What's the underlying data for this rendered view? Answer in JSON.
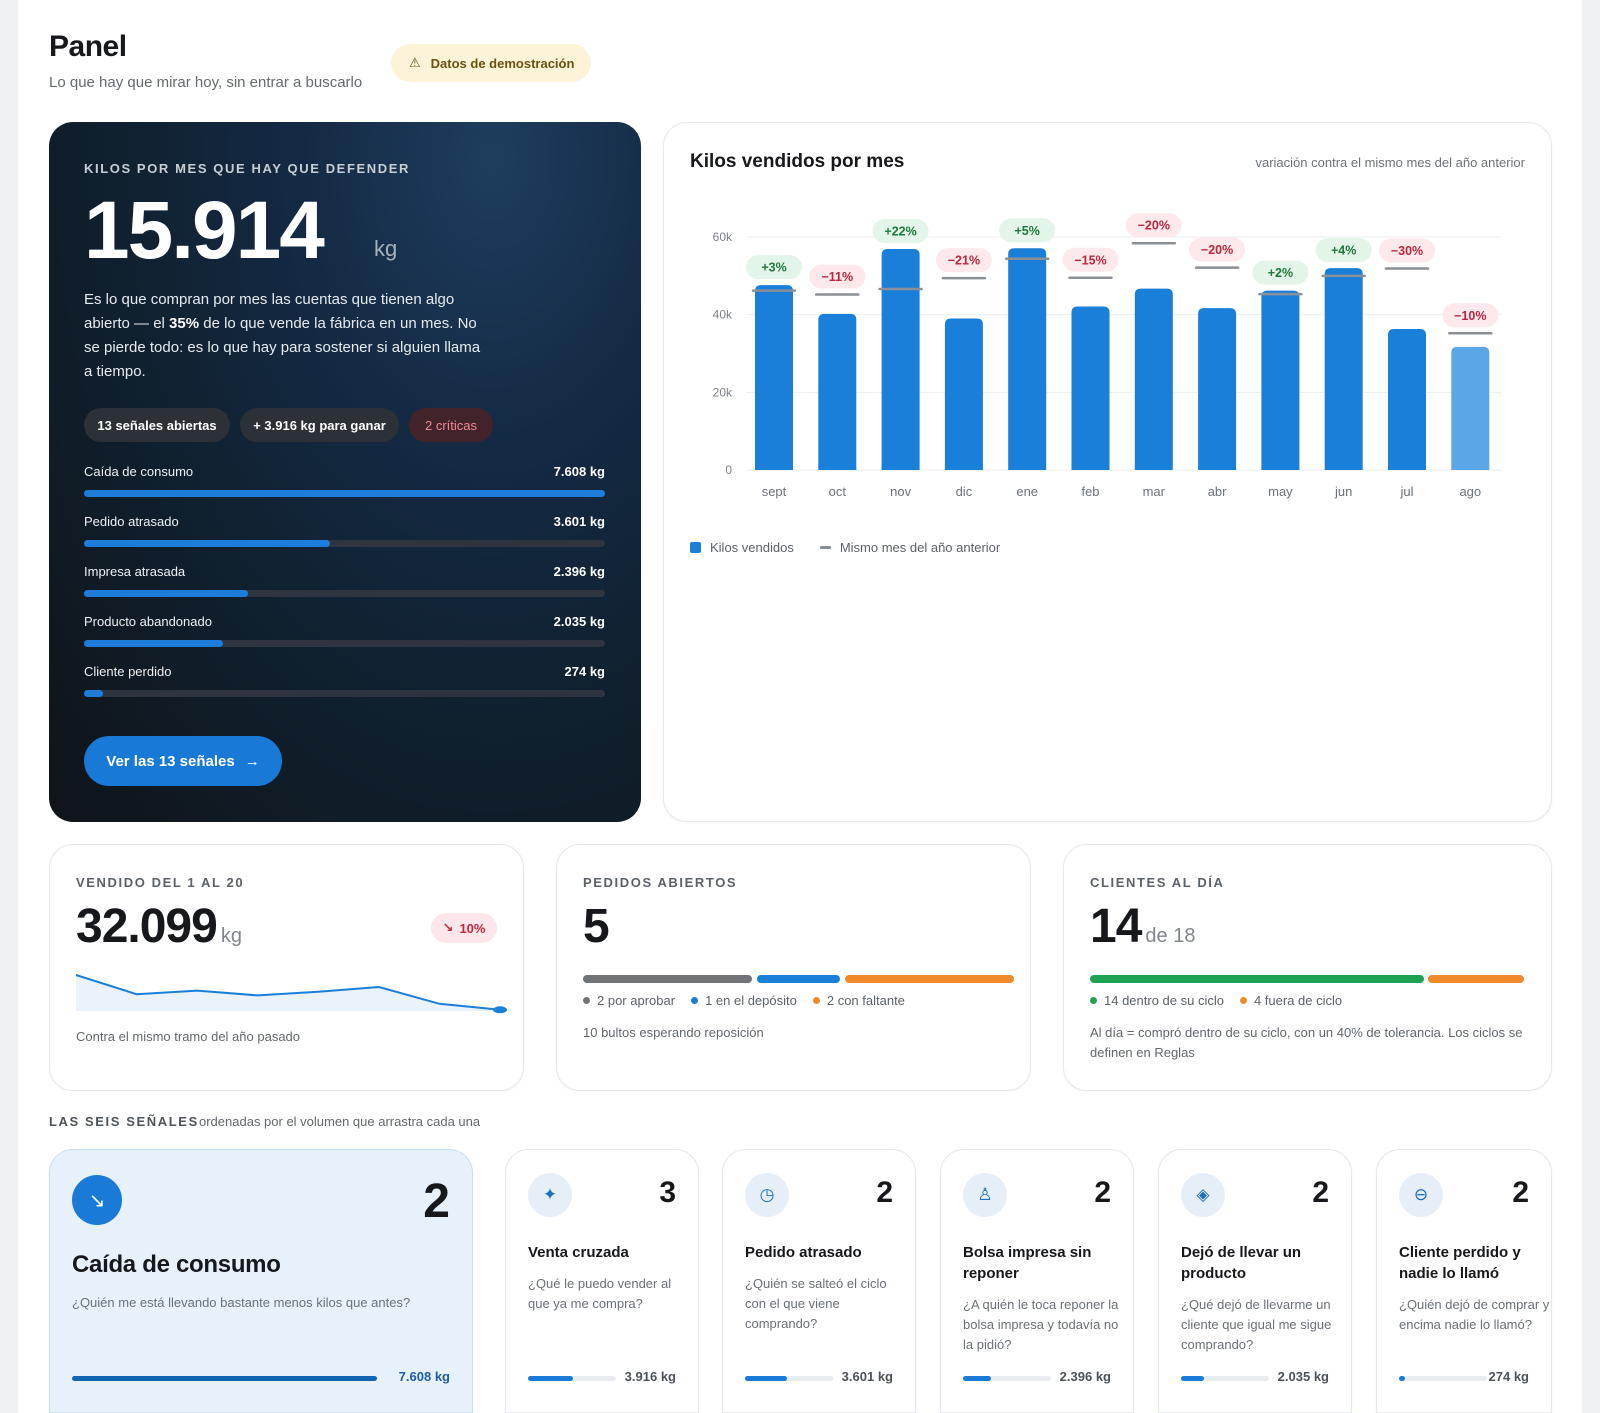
{
  "header": {
    "title": "Panel",
    "subtitle": "Lo que hay que mirar hoy, sin entrar a buscarlo",
    "demo_badge": "Datos de demostración"
  },
  "hero": {
    "eyebrow": "KILOS POR MES QUE HAY QUE DEFENDER",
    "value": "15.914",
    "unit": "kg",
    "desc_part1": "Es lo que compran por mes las cuentas que tienen algo abierto — el ",
    "desc_pct": "35%",
    "desc_part2": " de lo que vende la fábrica en un mes. No se pierde todo: es lo que hay para sostener si alguien llama a tiempo.",
    "pills": [
      "13 señales abiertas",
      "+ 3.916 kg para ganar",
      "2 críticas"
    ],
    "signals": [
      {
        "label": "Caída de consumo",
        "value": "7.608 kg",
        "fraction": 1.0
      },
      {
        "label": "Pedido atrasado",
        "value": "3.601 kg",
        "fraction": 0.473
      },
      {
        "label": "Impresa atrasada",
        "value": "2.396 kg",
        "fraction": 0.315
      },
      {
        "label": "Producto abandonado",
        "value": "2.035 kg",
        "fraction": 0.267
      },
      {
        "label": "Cliente perdido",
        "value": "274 kg",
        "fraction": 0.036
      }
    ],
    "cta": "Ver las 13 señales"
  },
  "chart": {
    "title": "Kilos vendidos por mes",
    "note": "variación contra el mismo mes del año anterior",
    "legend_sold": "Kilos vendidos",
    "legend_prev": "Mismo mes del año anterior"
  },
  "chart_data": {
    "type": "bar",
    "categories": [
      "sept",
      "oct",
      "nov",
      "dic",
      "ene",
      "feb",
      "mar",
      "abr",
      "may",
      "jun",
      "jul",
      "ago"
    ],
    "series": [
      {
        "name": "Kilos vendidos",
        "values": [
          47600,
          40200,
          56900,
          39000,
          57100,
          42100,
          46700,
          41700,
          46200,
          52000,
          36300,
          31700
        ]
      },
      {
        "name": "Mismo mes del año anterior",
        "values": [
          46200,
          45200,
          46600,
          49400,
          54400,
          49500,
          58400,
          52100,
          45300,
          50000,
          51900,
          35200
        ]
      }
    ],
    "change_labels": [
      "+3%",
      "−11%",
      "+22%",
      "−21%",
      "+5%",
      "−15%",
      "−20%",
      "−20%",
      "+2%",
      "+4%",
      "−30%",
      "−10%"
    ],
    "y_ticks": [
      "0",
      "20k",
      "40k",
      "60k"
    ],
    "ylim": [
      0,
      60000
    ],
    "colors": {
      "bar": "#1a7fd9",
      "bar_partial": "#5ba6e6",
      "prev": "#8b9096",
      "pos_bg": "#e3f4e8",
      "pos_text": "#1e7a3e",
      "neg_bg": "#fde8eb",
      "neg_text": "#b9283c"
    }
  },
  "kpi_sold": {
    "eyebrow": "VENDIDO DEL 1 AL 20",
    "value": "32.099",
    "unit": "kg",
    "delta": "10%",
    "note": "Contra el mismo tramo del año pasado",
    "sparkline": [
      100,
      84,
      87,
      83,
      86,
      90,
      76,
      71
    ]
  },
  "kpi_orders": {
    "eyebrow": "PEDIDOS ABIERTOS",
    "value": "5",
    "legend": [
      "2 por aprobar",
      "1 en el depósito",
      "2 con faltante"
    ],
    "note": "10 bultos esperando reposición",
    "colors": [
      "#6f7479",
      "#1a7fd9",
      "#f0882c"
    ]
  },
  "kpi_clients": {
    "eyebrow": "CLIENTES AL DÍA",
    "value": "14",
    "unit": "de 18",
    "legend": [
      "14 dentro de su ciclo",
      "4 fuera de ciclo"
    ],
    "note": "Al día = compró dentro de su ciclo, con un 40% de tolerancia. Los ciclos se definen en Reglas",
    "colors": [
      "#1fa352",
      "#f0882c"
    ]
  },
  "section": {
    "title": "LAS SEIS SEÑALES",
    "subtitle": "ordenadas por el volumen que arrastra cada una"
  },
  "signal_cards": [
    {
      "icon": "trending-down-icon",
      "count": "2",
      "title": "Caída de consumo",
      "question": "¿Quién me está llevando bastante menos kilos que antes?",
      "kg": "7.608 kg",
      "fraction": 1.0
    },
    {
      "icon": "sparkles-icon",
      "count": "3",
      "title": "Venta cruzada",
      "question": "¿Qué le puedo vender al que ya me compra?",
      "kg": "3.916 kg",
      "fraction": 0.515
    },
    {
      "icon": "calendar-clock-icon",
      "count": "2",
      "title": "Pedido atrasado",
      "question": "¿Quién se salteó el ciclo con el que viene comprando?",
      "kg": "3.601 kg",
      "fraction": 0.473
    },
    {
      "icon": "stamp-icon",
      "count": "2",
      "title": "Bolsa impresa sin reponer",
      "question": "¿A quién le toca reponer la bolsa impresa y todavía no la pidió?",
      "kg": "2.396 kg",
      "fraction": 0.315
    },
    {
      "icon": "layers-icon",
      "count": "2",
      "title": "Dejó de llevar un producto",
      "question": "¿Qué dejó de llevarme un cliente que igual me sigue comprando?",
      "kg": "2.035 kg",
      "fraction": 0.267
    },
    {
      "icon": "user-minus-icon",
      "count": "2",
      "title": "Cliente perdido y nadie lo llamó",
      "question": "¿Quién dejó de comprar y encima nadie lo llamó?",
      "kg": "274 kg",
      "fraction": 0.036
    }
  ]
}
